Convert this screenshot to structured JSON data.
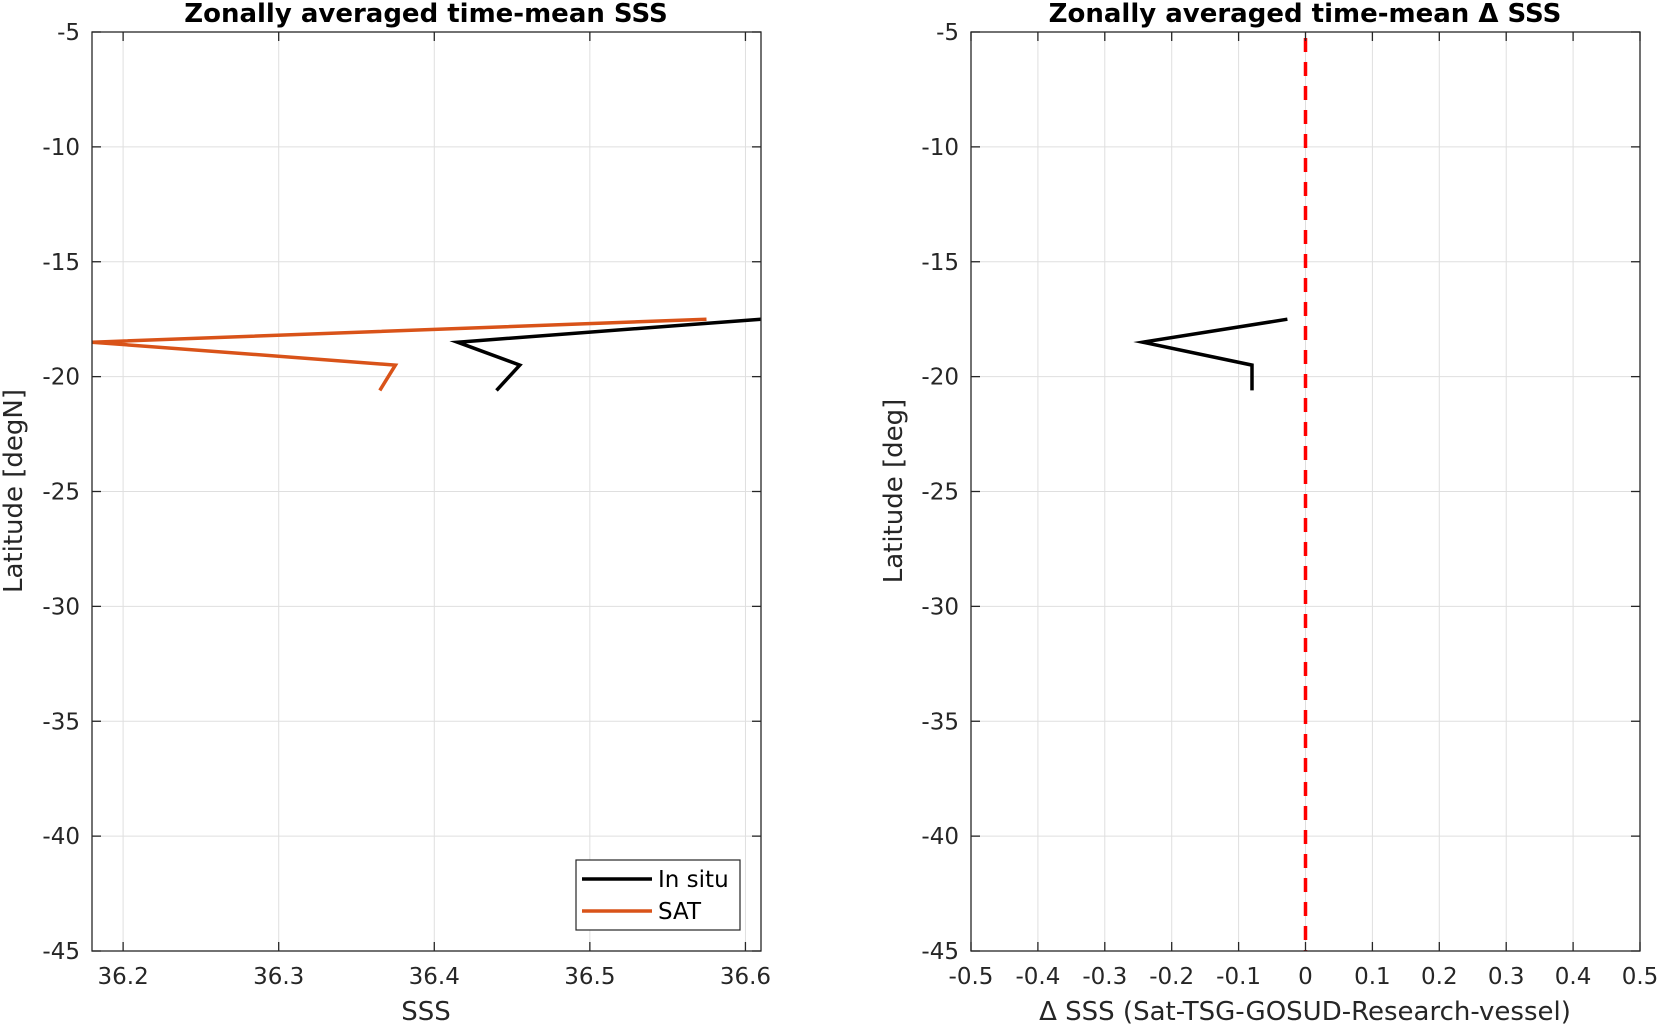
{
  "colors": {
    "grid": "#dfdfdf",
    "axis": "#262626",
    "in_situ": "#000000",
    "sat": "#d95319",
    "zero_line": "#ff0000"
  },
  "chart_data": [
    {
      "type": "line",
      "title": "Zonally averaged time-mean SSS",
      "xlabel": "SSS",
      "ylabel": "Latitude [degN]",
      "xlim": [
        36.18,
        36.61
      ],
      "ylim": [
        -45,
        -5
      ],
      "xticks": [
        36.2,
        36.3,
        36.4,
        36.5,
        36.6
      ],
      "xtick_labels": [
        "36.2",
        "36.3",
        "36.4",
        "36.5",
        "36.6"
      ],
      "yticks": [
        -45,
        -40,
        -35,
        -30,
        -25,
        -20,
        -15,
        -10,
        -5
      ],
      "ytick_labels": [
        "-45",
        "-40",
        "-35",
        "-30",
        "-25",
        "-20",
        "-15",
        "-10",
        "-5"
      ],
      "grid": true,
      "legend": "bottom-right",
      "series": [
        {
          "name": "In situ",
          "color": "#000000",
          "points": [
            {
              "x": 36.61,
              "y": -17.5
            },
            {
              "x": 36.415,
              "y": -18.5
            },
            {
              "x": 36.455,
              "y": -19.5
            },
            {
              "x": 36.44,
              "y": -20.6
            }
          ]
        },
        {
          "name": "SAT",
          "color": "#d95319",
          "points": [
            {
              "x": 36.575,
              "y": -17.5
            },
            {
              "x": 36.18,
              "y": -18.5
            },
            {
              "x": 36.375,
              "y": -19.5
            },
            {
              "x": 36.365,
              "y": -20.6
            }
          ]
        }
      ]
    },
    {
      "type": "line",
      "title": "Zonally averaged time-mean Δ SSS",
      "xlabel": "Δ SSS (Sat-TSG-GOSUD-Research-vessel)",
      "ylabel": "Latitude [deg]",
      "xlim": [
        -0.5,
        0.5
      ],
      "ylim": [
        -45,
        -5
      ],
      "xticks": [
        -0.5,
        -0.4,
        -0.3,
        -0.2,
        -0.1,
        0,
        0.1,
        0.2,
        0.3,
        0.4,
        0.5
      ],
      "xtick_labels": [
        "-0.5",
        "-0.4",
        "-0.3",
        "-0.2",
        "-0.1",
        "0",
        "0.1",
        "0.2",
        "0.3",
        "0.4",
        "0.5"
      ],
      "yticks": [
        -45,
        -40,
        -35,
        -30,
        -25,
        -20,
        -15,
        -10,
        -5
      ],
      "ytick_labels": [
        "-45",
        "-40",
        "-35",
        "-30",
        "-25",
        "-20",
        "-15",
        "-10",
        "-5"
      ],
      "grid": true,
      "series": [
        {
          "color": "#000000",
          "points": [
            {
              "x": -0.027,
              "y": -17.5
            },
            {
              "x": -0.243,
              "y": -18.5
            },
            {
              "x": -0.08,
              "y": -19.5
            },
            {
              "x": -0.08,
              "y": -20.6
            }
          ]
        }
      ],
      "reference_line": {
        "x": 0,
        "color": "#ff0000",
        "style": "dashed"
      }
    }
  ]
}
